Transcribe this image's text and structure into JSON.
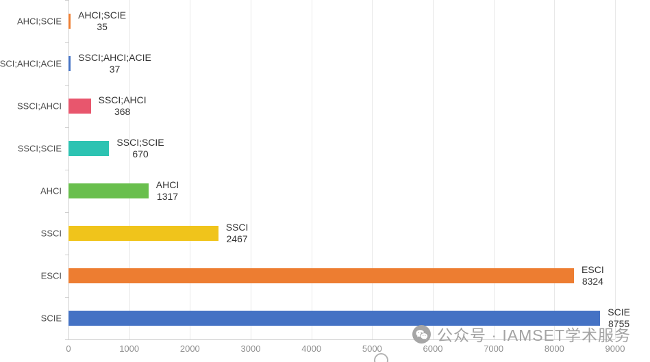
{
  "chart_data": {
    "type": "bar",
    "orientation": "horizontal",
    "title": "",
    "categories": [
      "AHCI;SCIE",
      "SSCI;AHCI;ACIE",
      "SSCI;AHCI",
      "SSCI;SCIE",
      "AHCI",
      "SSCI",
      "ESCI",
      "SCIE"
    ],
    "values": [
      35,
      37,
      368,
      670,
      1317,
      2467,
      8324,
      8755
    ],
    "bar_colors": [
      "#ed7d31",
      "#4472c4",
      "#e8566d",
      "#2dc3b2",
      "#69bf4d",
      "#f0c41b",
      "#ed7d31",
      "#4472c4"
    ],
    "xlim": [
      0,
      9000
    ],
    "x_ticks": [
      0,
      1000,
      2000,
      3000,
      4000,
      5000,
      6000,
      7000,
      8000,
      9000
    ],
    "grid": true,
    "legend": "none",
    "value_label_format": "category name above value, right of bar end"
  },
  "watermark": {
    "icon": "wechat-icon",
    "text": "公众号 · IAMSET学术服务",
    "color": "#a3a3a3"
  },
  "colors": {
    "background": "#ffffff",
    "gridline": "#e8e8e8",
    "axis_line": "#cfcfcf",
    "category_label": "#4d4d4d",
    "tick_label": "#8f8f8f",
    "bar_label": "#333333"
  }
}
